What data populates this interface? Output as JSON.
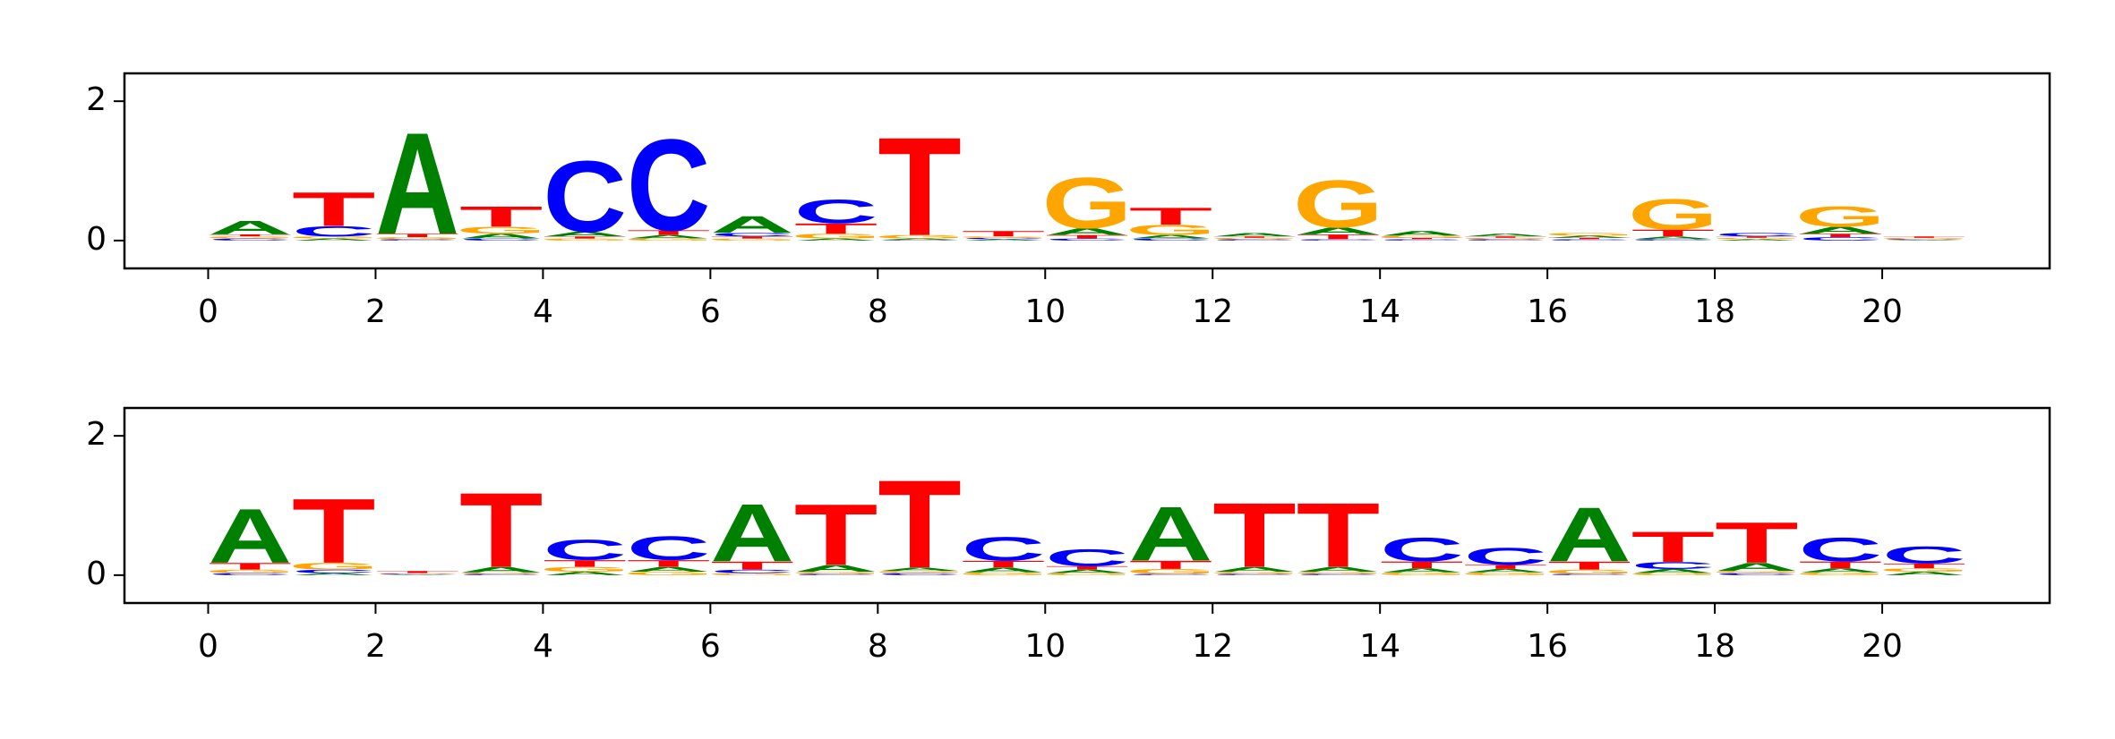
{
  "chart_data": [
    {
      "type": "logo",
      "xlim": [
        -1,
        22
      ],
      "ylim": [
        -0.4,
        2.4
      ],
      "xticks": [
        0,
        2,
        4,
        6,
        8,
        10,
        12,
        14,
        16,
        18,
        20
      ],
      "yticks": [
        0,
        2
      ],
      "series": [
        {
          "name": "A",
          "color": "#008000",
          "values": [
            0.2,
            0.03,
            1.5,
            0.07,
            0.07,
            0.05,
            0.25,
            0.03,
            0.02,
            0.02,
            0.1,
            0.05,
            0.05,
            0.1,
            0.07,
            0.04,
            0.03,
            0.04,
            0.02,
            0.1,
            0.01
          ]
        },
        {
          "name": "C",
          "color": "#0000ff",
          "values": [
            0.03,
            0.15,
            0.02,
            0.03,
            1.05,
            1.35,
            0.05,
            0.35,
            0.01,
            0.02,
            0.03,
            0.03,
            0.02,
            0.02,
            0.02,
            0.02,
            0.02,
            0.02,
            0.05,
            0.05,
            0.01
          ]
        },
        {
          "name": "G",
          "color": "#ffa500",
          "values": [
            0.03,
            0.03,
            0.03,
            0.1,
            0.03,
            0.03,
            0.03,
            0.07,
            0.05,
            0.02,
            0.75,
            0.15,
            0.02,
            0.7,
            0.03,
            0.02,
            0.04,
            0.45,
            0.02,
            0.3,
            0.02
          ]
        },
        {
          "name": "T",
          "color": "#ff0000",
          "values": [
            0.03,
            0.5,
            0.05,
            0.3,
            0.03,
            0.07,
            0.03,
            0.15,
            1.45,
            0.08,
            0.05,
            0.25,
            0.02,
            0.07,
            0.02,
            0.02,
            0.02,
            0.1,
            0.02,
            0.05,
            0.02
          ]
        }
      ]
    },
    {
      "type": "logo",
      "xlim": [
        -1,
        22
      ],
      "ylim": [
        -0.4,
        2.4
      ],
      "xticks": [
        0,
        2,
        4,
        6,
        8,
        10,
        12,
        14,
        16,
        18,
        20
      ],
      "yticks": [
        0,
        2
      ],
      "series": [
        {
          "name": "A",
          "color": "#008000",
          "values": [
            0.8,
            0.03,
            0.01,
            0.08,
            0.05,
            0.07,
            0.85,
            0.1,
            0.05,
            0.07,
            0.05,
            0.8,
            0.07,
            0.07,
            0.06,
            0.05,
            0.8,
            0.06,
            0.12,
            0.06,
            0.05
          ]
        },
        {
          "name": "C",
          "color": "#0000ff",
          "values": [
            0.03,
            0.05,
            0.01,
            0.02,
            0.3,
            0.35,
            0.05,
            0.02,
            0.03,
            0.35,
            0.25,
            0.02,
            0.02,
            0.02,
            0.35,
            0.25,
            0.02,
            0.1,
            0.03,
            0.35,
            0.25
          ]
        },
        {
          "name": "G",
          "color": "#ffa500",
          "values": [
            0.05,
            0.1,
            0.01,
            0.02,
            0.07,
            0.05,
            0.03,
            0.03,
            0.03,
            0.04,
            0.03,
            0.07,
            0.03,
            0.03,
            0.04,
            0.04,
            0.06,
            0.03,
            0.03,
            0.04,
            0.05
          ]
        },
        {
          "name": "T",
          "color": "#ff0000",
          "values": [
            0.1,
            0.95,
            0.03,
            1.1,
            0.1,
            0.1,
            0.12,
            0.9,
            1.3,
            0.1,
            0.05,
            0.12,
            0.95,
            0.95,
            0.1,
            0.06,
            0.12,
            0.45,
            0.6,
            0.1,
            0.07
          ]
        }
      ]
    }
  ]
}
